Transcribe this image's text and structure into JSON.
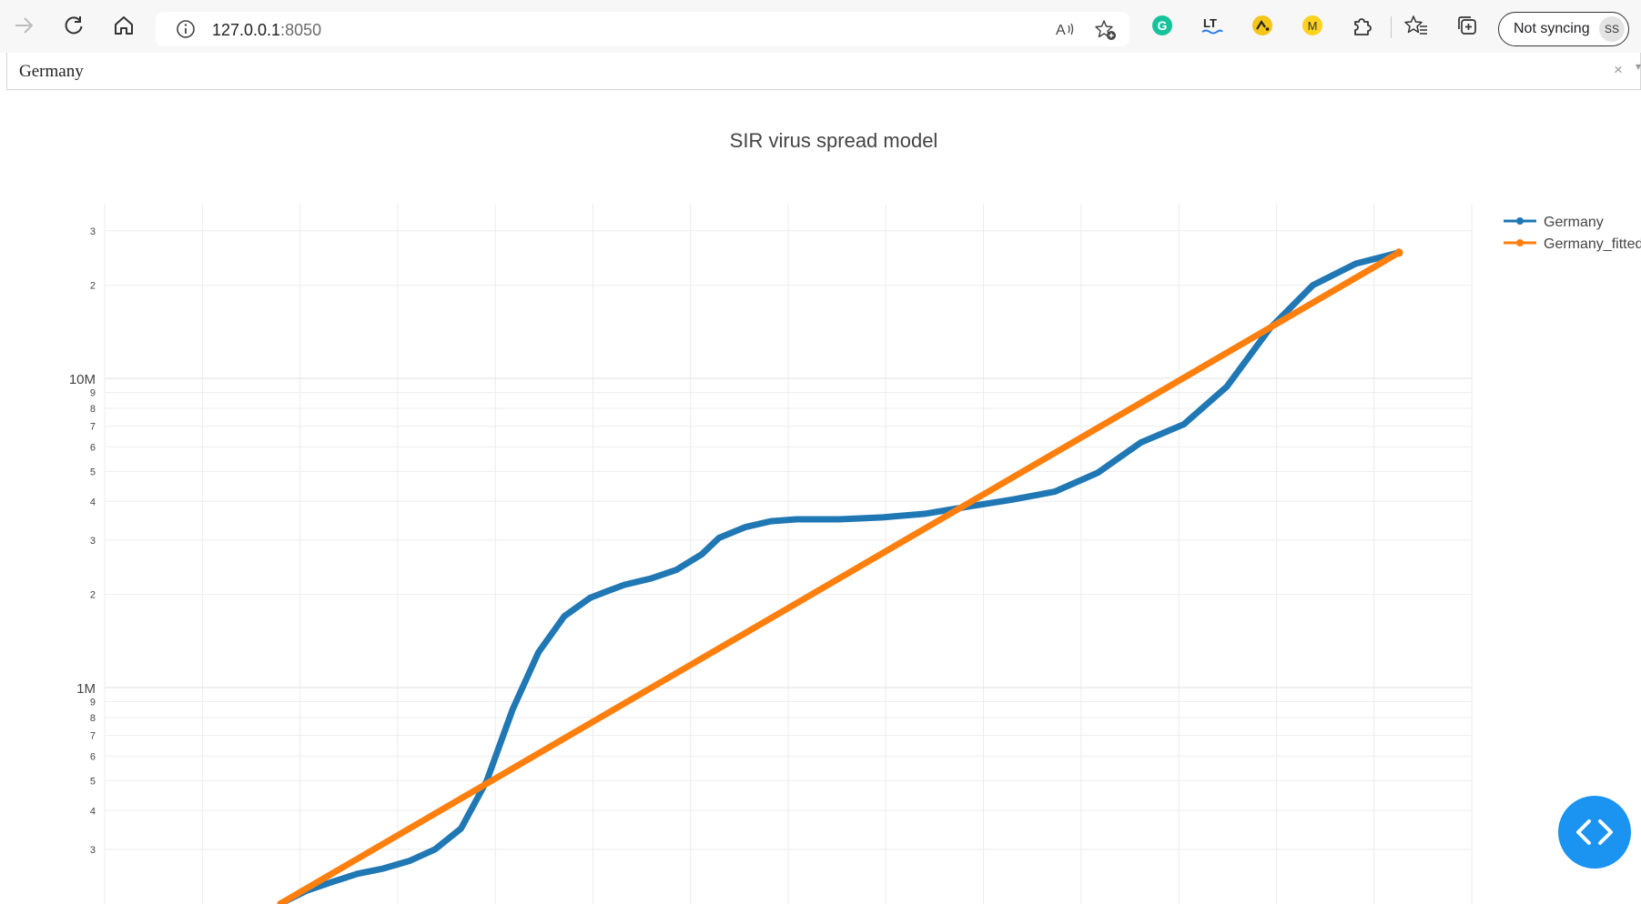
{
  "browser": {
    "url_host": "127.0.0.1",
    "url_port": ":8050",
    "sync_label": "Not syncing",
    "avatar_initials": "SS",
    "icons": [
      "back-arrow-icon",
      "refresh-icon",
      "home-icon",
      "site-info-icon",
      "read-aloud-icon",
      "add-favorite-icon",
      "grammarly-extension-icon",
      "languagetool-extension-icon",
      "yellow-extension-icon",
      "m-extension-icon",
      "extensions-puzzle-icon",
      "favorites-icon",
      "collections-icon"
    ],
    "accent_color": "#1a93f1"
  },
  "dropdown": {
    "selected_value": "Germany",
    "clear_label": "×"
  },
  "chart_data": {
    "type": "line",
    "title": "SIR virus spread model",
    "yscale": "log",
    "ylim_visible": [
      220000,
      36000000
    ],
    "y_major_ticks": [
      {
        "value": 1000000,
        "label": "1M"
      },
      {
        "value": 10000000,
        "label": "10M"
      }
    ],
    "y_minor_ticks": [
      {
        "value": 300000,
        "label": "3"
      },
      {
        "value": 400000,
        "label": "4"
      },
      {
        "value": 500000,
        "label": "5"
      },
      {
        "value": 600000,
        "label": "6"
      },
      {
        "value": 700000,
        "label": "7"
      },
      {
        "value": 800000,
        "label": "8"
      },
      {
        "value": 900000,
        "label": "9"
      },
      {
        "value": 2000000,
        "label": "2"
      },
      {
        "value": 3000000,
        "label": "3"
      },
      {
        "value": 4000000,
        "label": "4"
      },
      {
        "value": 5000000,
        "label": "5"
      },
      {
        "value": 6000000,
        "label": "6"
      },
      {
        "value": 7000000,
        "label": "7"
      },
      {
        "value": 8000000,
        "label": "8"
      },
      {
        "value": 9000000,
        "label": "9"
      },
      {
        "value": 20000000,
        "label": "2"
      },
      {
        "value": 30000000,
        "label": "3"
      }
    ],
    "x_gridlines": 14,
    "grid": true,
    "legend_position": "top-right",
    "series": [
      {
        "name": "Germany",
        "color": "#1f77b4",
        "x": [
          0,
          0.3,
          0.6,
          0.9,
          1.2,
          1.5,
          1.8,
          2.1,
          2.4,
          2.7,
          3.0,
          3.3,
          3.6,
          3.8,
          4.0,
          4.3,
          4.6,
          4.9,
          5.1,
          5.4,
          5.7,
          6.0,
          6.5,
          7.0,
          7.5,
          8.0,
          8.5,
          9.0,
          9.5,
          10.0,
          10.5,
          11.0,
          11.5,
          12.0,
          12.5,
          13.0
        ],
        "y": [
          200000,
          220000,
          235000,
          250000,
          260000,
          275000,
          300000,
          350000,
          500000,
          850000,
          1300000,
          1700000,
          1950000,
          2050000,
          2150000,
          2250000,
          2400000,
          2700000,
          3050000,
          3300000,
          3450000,
          3500000,
          3500000,
          3550000,
          3650000,
          3850000,
          4050000,
          4300000,
          4950000,
          6200000,
          7100000,
          9400000,
          14500000,
          20000000,
          23500000,
          25500000
        ]
      },
      {
        "name": "Germany_fitted",
        "color": "#ff7f0e",
        "x": [
          0,
          13
        ],
        "y": [
          200000,
          25500000
        ]
      }
    ]
  }
}
